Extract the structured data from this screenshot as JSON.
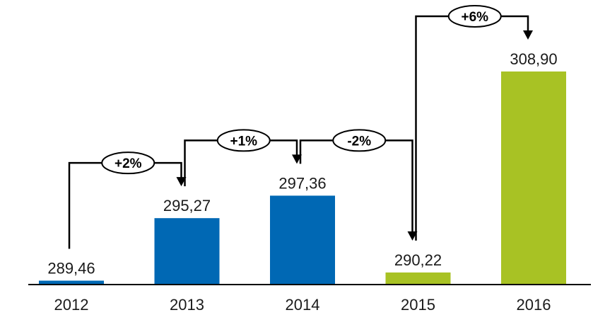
{
  "chart_data": {
    "type": "bar",
    "categories": [
      "2012",
      "2013",
      "2014",
      "2015",
      "2016"
    ],
    "values": [
      289.46,
      295.27,
      297.36,
      290.22,
      308.9
    ],
    "value_labels": [
      "289,46",
      "295,27",
      "297,36",
      "290,22",
      "308,90"
    ],
    "bar_colors": [
      "#0068b4",
      "#0068b4",
      "#0068b4",
      "#a8c224",
      "#a8c224"
    ],
    "changes": [
      "+2%",
      "+1%",
      "-2%",
      "+6%"
    ],
    "title": "",
    "xlabel": "",
    "ylabel": "",
    "grid": false,
    "legend": "none"
  }
}
